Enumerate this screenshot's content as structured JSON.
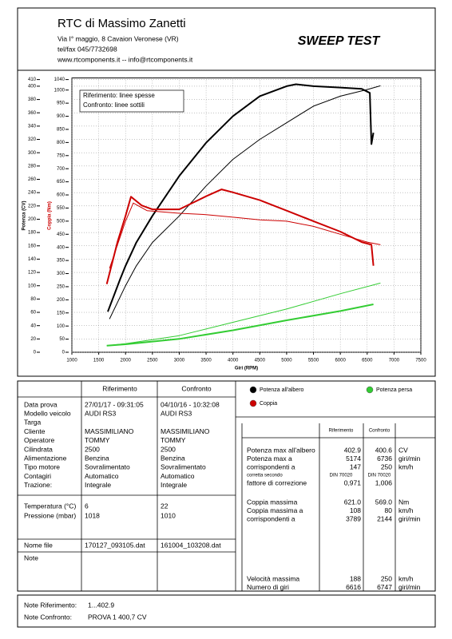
{
  "header": {
    "company": "RTC di Massimo Zanetti",
    "address": "Via I° maggio, 8 Cavaion Veronese (VR)",
    "phone": "tel/fax 045/7732698",
    "web": "www.rtcomponents.it  -- info@rtcomponents.it",
    "title": "SWEEP TEST"
  },
  "chart_data": {
    "type": "line",
    "xlabel": "Giri (RPM)",
    "ylabel": "Potenza (CV)",
    "y2label": "Coppia (Nm)",
    "note_lines": [
      "Riferimento: linee spesse",
      "Confronto: linee sottili"
    ],
    "xlim": [
      1000,
      7500
    ],
    "xticks": [
      1000,
      1500,
      2000,
      2500,
      3000,
      3500,
      4000,
      4500,
      5000,
      5500,
      6000,
      6500,
      7000,
      7500
    ],
    "ylim": [
      0,
      410
    ],
    "yticks": [
      0,
      20,
      40,
      60,
      80,
      100,
      120,
      140,
      160,
      180,
      200,
      220,
      240,
      260,
      280,
      300,
      320,
      340,
      360,
      380,
      400,
      410
    ],
    "y2lim": [
      0,
      1040
    ],
    "y2ticks": [
      0,
      50,
      100,
      150,
      200,
      250,
      300,
      350,
      400,
      450,
      500,
      550,
      600,
      650,
      700,
      750,
      800,
      850,
      900,
      950,
      1000,
      1040
    ],
    "grid": true,
    "series": [
      {
        "name": "Potenza all'albero",
        "color": "#000000",
        "axis": "y",
        "lines": [
          {
            "x": [
              1670,
              1900,
              2000,
              2200,
              2500,
              3000,
              3500,
              4000,
              4500,
              5000,
              5174,
              5500,
              6000,
              6400,
              6550,
              6580,
              6616
            ],
            "values": [
              61,
              110,
              130,
              165,
              205,
              265,
              315,
              355,
              385,
              400,
              402.9,
              400,
              398,
              396,
              390,
              313,
              330
            ]
          },
          {
            "x": [
              1700,
              2000,
              2200,
              2500,
              3000,
              3500,
              4000,
              4500,
              5000,
              5500,
              6000,
              6500,
              6747
            ],
            "values": [
              50,
              100,
              130,
              165,
              205,
              250,
              290,
              320,
              345,
              370,
              385,
              395,
              400.6
            ]
          }
        ]
      },
      {
        "name": "Coppia",
        "color": "#cc0000",
        "axis": "y2",
        "lines": [
          {
            "x": [
              1650,
              1850,
              2000,
              2100,
              2300,
              2500,
              3000,
              3500,
              3789,
              4000,
              4500,
              5000,
              5500,
              6000,
              6400,
              6580,
              6616
            ],
            "values": [
              260,
              420,
              520,
              593,
              560,
              545,
              545,
              595,
              621,
              610,
              580,
              540,
              500,
              460,
              420,
              410,
              330
            ]
          },
          {
            "x": [
              1700,
              2000,
              2144,
              2400,
              3000,
              3500,
              4000,
              4500,
              5000,
              5500,
              6000,
              6500,
              6747
            ],
            "values": [
              320,
              500,
              569,
              540,
              530,
              525,
              515,
              505,
              500,
              480,
              450,
              420,
              410
            ]
          }
        ]
      },
      {
        "name": "Potenza persa",
        "color": "#33cc33",
        "axis": "y",
        "lines": [
          {
            "x": [
              1650,
              2000,
              3000,
              4000,
              5000,
              6000,
              6616
            ],
            "values": [
              10,
              12,
              20,
              33,
              48,
              62,
              72
            ]
          },
          {
            "x": [
              1650,
              2000,
              3000,
              4000,
              5000,
              6000,
              6747
            ],
            "values": [
              10,
              13,
              25,
              45,
              65,
              88,
              104
            ]
          }
        ]
      }
    ]
  },
  "vehicle_table": {
    "columns": [
      "Riferimento",
      "Confronto"
    ],
    "rows": [
      [
        "Data prova",
        "27/01/17 - 09:31:05",
        "04/10/16 - 10:32:08"
      ],
      [
        "Modello veicolo",
        "AUDI RS3",
        "AUDI RS3"
      ],
      [
        "Targa",
        null,
        null
      ],
      [
        "Cliente",
        "MASSIMILIANO",
        "MASSIMILIANO"
      ],
      [
        "Operatore",
        "TOMMY",
        "TOMMY"
      ],
      [
        "Cilindrata",
        "2500",
        "2500"
      ],
      [
        "Alimentazione",
        "Benzina",
        "Benzina"
      ],
      [
        "Tipo motore",
        "Sovralimentato",
        "Sovralimentato"
      ],
      [
        "Contagiri",
        "Automatico",
        "Automatico"
      ],
      [
        "Trazione:",
        "Integrale",
        "Integrale"
      ]
    ],
    "conditions": [
      [
        "Temperatura (°C)",
        "6",
        "22"
      ],
      [
        "Pressione (mbar)",
        "1018",
        "1010"
      ]
    ],
    "file": [
      "Nome file",
      "170127_093105.dat",
      "161004_103208.dat"
    ],
    "note": "Note"
  },
  "results_table": {
    "columns": [
      "Riferimento",
      "Confronto"
    ],
    "power": [
      [
        "Potenza max all'albero",
        "402.9",
        "400.6",
        "CV"
      ],
      [
        "Potenza max a",
        "5174",
        "6736",
        "giri/min"
      ],
      [
        "corrispondenti a",
        "147",
        "250",
        "km/h"
      ],
      [
        "corretta secondo",
        "DIN 70020",
        "DIN 70020",
        null
      ],
      [
        "fattore di correzione",
        "0,971",
        "1,006",
        null
      ]
    ],
    "torque": [
      [
        "Coppia massima",
        "621.0",
        "569.0",
        "Nm"
      ],
      [
        "Coppia massima a",
        "108",
        "80",
        "km/h"
      ],
      [
        "corrispondenti a",
        "3789",
        "2144",
        "giri/min"
      ]
    ],
    "speed": [
      [
        "Velocità massima",
        "188",
        "250",
        "km/h"
      ],
      [
        "Numero di giri",
        "6616",
        "6747",
        "giri/min"
      ]
    ]
  },
  "notes": [
    [
      "Note Riferimento:",
      "1...402.9"
    ],
    [
      "Note Confronto:",
      "PROVA 1 400,7 CV"
    ]
  ]
}
